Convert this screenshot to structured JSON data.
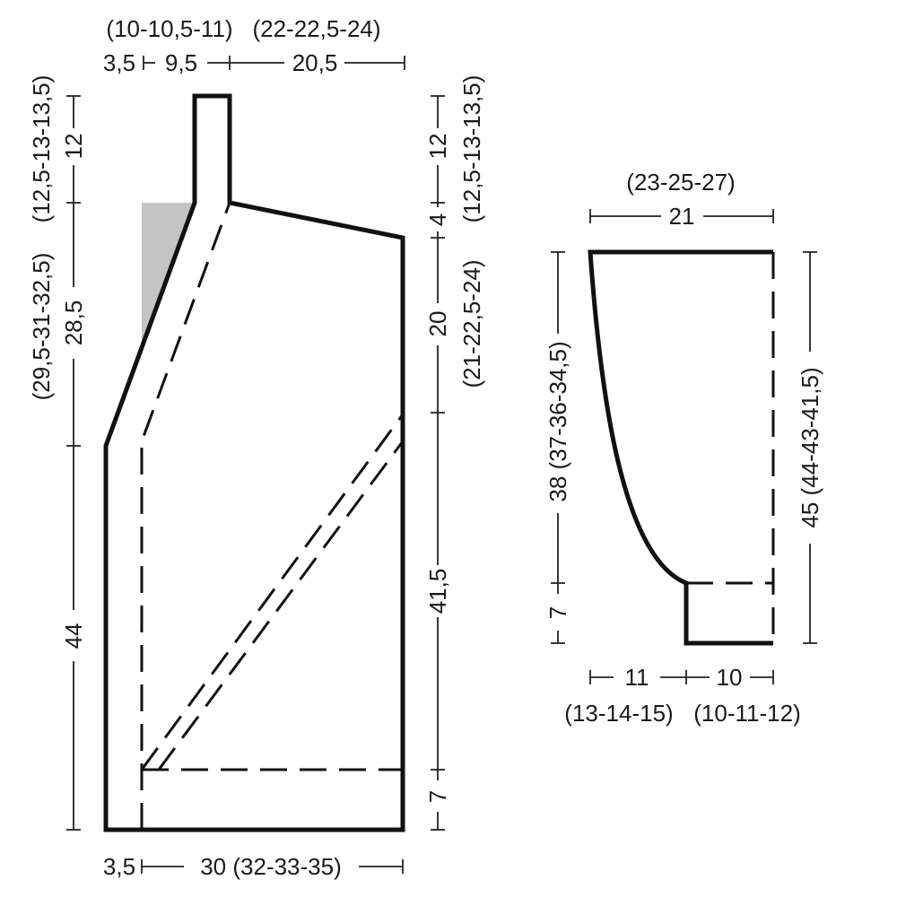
{
  "colors": {
    "outline": "#111111",
    "dimension_line": "#222222",
    "shoulder_fill": "#c4c4c4",
    "background": "#ffffff"
  },
  "body_piece": {
    "top": {
      "label_1": "(10-10,5-11)",
      "label_2": "(22-22,5-24)",
      "label_3": "3,5",
      "label_4": "9,5",
      "label_5": "20,5"
    },
    "bottom": {
      "label_1": "3,5",
      "label_2": "30 (32-33-35)"
    },
    "left": {
      "label_1": "12",
      "label_2": "(12,5-13-13,5)",
      "label_3": "28,5",
      "label_4": "(29,5-31-32,5)",
      "label_5": "44"
    },
    "right": {
      "label_1": "12",
      "label_2": "(12,5-13-13,5)",
      "label_3": "4",
      "label_4": "20",
      "label_5": "(21-22,5-24)",
      "label_6": "41,5",
      "label_7": "7"
    }
  },
  "sleeve_piece": {
    "top": {
      "label_1": "(23-25-27)",
      "label_2": "21"
    },
    "left": {
      "label_1": "38 (37-36-34,5)",
      "label_2": "7"
    },
    "right": {
      "label_1": "45 (44-43-41,5)"
    },
    "bottom": {
      "label_1": "11",
      "label_2": "10",
      "label_3": "(13-14-15)",
      "label_4": "(10-11-12)"
    }
  }
}
